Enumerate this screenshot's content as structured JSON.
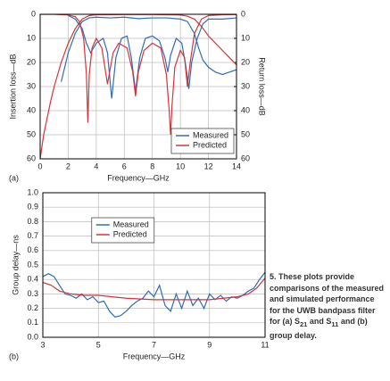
{
  "chart_data": [
    {
      "type": "line",
      "panel": "(a)",
      "xlabel": "Frequency—GHz",
      "ylabel": "Insertion loss—dB",
      "y2label": "Return loss—dB",
      "xlim": [
        0,
        14
      ],
      "xticks": [
        0,
        2,
        4,
        6,
        8,
        10,
        12,
        14
      ],
      "ylim": [
        60,
        0
      ],
      "yticks": [
        0,
        10,
        20,
        30,
        40,
        50,
        60
      ],
      "y2lim": [
        60,
        0
      ],
      "y2ticks": [
        0,
        10,
        20,
        30,
        40,
        50,
        60
      ],
      "grid": true,
      "legend": "lower right",
      "series": [
        {
          "name": "Measured",
          "color": "#2f6db3",
          "x": [
            1.5,
            2,
            2.5,
            3,
            3.5,
            4,
            5,
            6,
            7,
            8,
            9,
            10,
            10.5,
            11,
            11.3,
            11.6,
            12,
            12.5,
            13,
            13.5,
            14
          ],
          "values": [
            28,
            16,
            8,
            3,
            1.5,
            1.2,
            1.5,
            1.2,
            1.8,
            1.5,
            1.5,
            2,
            3,
            8,
            14,
            19,
            22,
            24,
            25,
            24,
            23
          ]
        },
        {
          "name": "Predicted",
          "color": "#d2353c",
          "x": [
            0,
            0.25,
            0.5,
            0.75,
            1,
            1.5,
            2,
            2.5,
            3,
            3.5,
            4,
            6,
            8,
            10,
            10.5,
            11,
            11.5,
            12,
            12.5,
            13,
            13.5,
            14
          ],
          "values": [
            60,
            50,
            43,
            36,
            30,
            20,
            12,
            6,
            2,
            0.5,
            0.2,
            0.1,
            0.1,
            0.3,
            0.8,
            2,
            5,
            9,
            12,
            15,
            18,
            21
          ]
        },
        {
          "color": "#2f6db3",
          "axis": "y2",
          "x": [
            2,
            2.5,
            3,
            3.3,
            3.6,
            4,
            4.5,
            4.8,
            5.1,
            5.4,
            5.8,
            6.2,
            6.5,
            6.8,
            7.1,
            7.5,
            8,
            8.5,
            8.9,
            9.1,
            9.3,
            9.7,
            10.1,
            10.4,
            10.6,
            10.8,
            11.2,
            11.6,
            12,
            12.5,
            13,
            14
          ],
          "values": [
            0.5,
            2,
            6,
            12,
            16,
            12,
            10,
            16,
            35,
            18,
            10,
            9,
            18,
            32,
            18,
            10,
            9,
            11,
            18,
            24,
            17,
            10,
            12,
            22,
            31,
            20,
            10,
            4,
            2,
            2,
            2,
            1.5
          ]
        },
        {
          "color": "#d2353c",
          "axis": "y2",
          "x": [
            0,
            1,
            2,
            2.5,
            2.8,
            3.1,
            3.3,
            3.4,
            3.5,
            3.7,
            4,
            4.4,
            4.8,
            5.2,
            5.6,
            6.2,
            6.6,
            6.8,
            7,
            7.4,
            8,
            8.6,
            9,
            9.2,
            9.3,
            9.4,
            9.6,
            10,
            10.3,
            10.5,
            10.7,
            11,
            11.5,
            12,
            13,
            14
          ],
          "values": [
            0,
            0,
            0.3,
            1,
            3,
            10,
            25,
            45,
            25,
            14,
            10,
            14,
            29,
            16,
            12,
            14,
            24,
            34,
            24,
            15,
            12,
            14,
            25,
            40,
            50,
            38,
            22,
            15,
            18,
            30,
            20,
            8,
            2,
            0.5,
            0.2,
            0.1
          ]
        }
      ]
    },
    {
      "type": "line",
      "panel": "(b)",
      "xlabel": "Frequency—GHz",
      "ylabel": "Group delay—ns",
      "xlim": [
        3,
        11
      ],
      "xticks": [
        3,
        5,
        7,
        9,
        11
      ],
      "ylim": [
        0,
        1
      ],
      "yticks": [
        {
          "value": 0,
          "label": "0.0"
        },
        0.1,
        0.2,
        0.3,
        0.4,
        0.5,
        0.6,
        0.7,
        0.8,
        0.9,
        {
          "value": 1,
          "label": "1.0"
        }
      ],
      "grid": true,
      "legend": "upper center",
      "series": [
        {
          "name": "Measured",
          "color": "#2f6db3",
          "x": [
            3,
            3.2,
            3.4,
            3.6,
            3.8,
            4,
            4.2,
            4.4,
            4.6,
            4.8,
            5,
            5.2,
            5.4,
            5.6,
            5.8,
            6,
            6.2,
            6.4,
            6.6,
            6.8,
            7,
            7.2,
            7.4,
            7.6,
            7.8,
            8,
            8.2,
            8.4,
            8.6,
            8.8,
            9,
            9.2,
            9.4,
            9.6,
            9.8,
            10,
            10.2,
            10.4,
            10.6,
            10.8,
            11
          ],
          "values": [
            0.42,
            0.44,
            0.42,
            0.36,
            0.3,
            0.29,
            0.27,
            0.3,
            0.26,
            0.28,
            0.24,
            0.25,
            0.18,
            0.14,
            0.15,
            0.18,
            0.22,
            0.25,
            0.27,
            0.32,
            0.28,
            0.36,
            0.22,
            0.18,
            0.3,
            0.2,
            0.32,
            0.22,
            0.27,
            0.2,
            0.3,
            0.26,
            0.29,
            0.25,
            0.28,
            0.27,
            0.29,
            0.32,
            0.34,
            0.4,
            0.45
          ]
        },
        {
          "name": "Predicted",
          "color": "#d2353c",
          "x": [
            3,
            3.3,
            3.6,
            4,
            4.5,
            5,
            6,
            7,
            8,
            9,
            9.5,
            10,
            10.4,
            10.7,
            11
          ],
          "values": [
            0.38,
            0.36,
            0.32,
            0.3,
            0.29,
            0.29,
            0.27,
            0.26,
            0.26,
            0.26,
            0.27,
            0.28,
            0.3,
            0.34,
            0.41
          ]
        }
      ]
    }
  ],
  "caption": [
    {
      "text": "5. These plots provide comparisons of the measured and simulated performance for the UWB bandpass filter for (a) S"
    },
    {
      "sub": "21"
    },
    {
      "text": " and S"
    },
    {
      "sub": "11"
    },
    {
      "text": " and (b) group delay."
    }
  ]
}
